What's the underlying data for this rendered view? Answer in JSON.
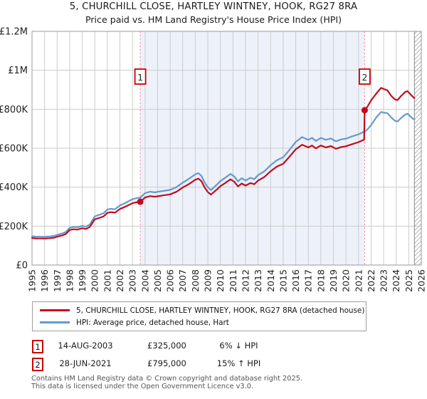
{
  "title": "5, CHURCHILL CLOSE, HARTLEY WINTNEY, HOOK, RG27 8RA",
  "subtitle": "Price paid vs. HM Land Registry's House Price Index (HPI)",
  "colors": {
    "property_line": "#c00c1e",
    "hpi_line": "#6699cc",
    "sale_dash_line": "#ff8888",
    "sale_dot": "#c00c1e",
    "marker_box_border": "#cc0000",
    "shade_fill": "#edf1fa",
    "grid": "#cccccc",
    "plot_border": "#999999",
    "hatch_stroke": "#aaaaaa"
  },
  "chart_data": {
    "type": "line",
    "title": "5, CHURCHILL CLOSE, HARTLEY WINTNEY, HOOK, RG27 8RA",
    "subtitle": "Price paid vs. HM Land Registry's House Price Index (HPI)",
    "grid": true,
    "legend_position": "bottom",
    "x_axis": {
      "min": 1995,
      "max": 2026,
      "tick_step": 1
    },
    "y_axis": {
      "min": 0,
      "max": 1200000,
      "ticks": [
        {
          "v": 0,
          "label": "£0"
        },
        {
          "v": 200000,
          "label": "£200K"
        },
        {
          "v": 400000,
          "label": "£400K"
        },
        {
          "v": 600000,
          "label": "£600K"
        },
        {
          "v": 800000,
          "label": "£800K"
        },
        {
          "v": 1000000,
          "label": "£1M"
        },
        {
          "v": 1200000,
          "label": "£1.2M"
        }
      ]
    },
    "shaded_region": {
      "from": 2003.62,
      "to": 2021.49
    },
    "hatched_region": {
      "from": 2025.45,
      "to": 2026
    },
    "sales": [
      {
        "n": "1",
        "x": 2003.62,
        "price": 325000,
        "date": "14-AUG-2003",
        "vs_hpi": "6% ↓ HPI"
      },
      {
        "n": "2",
        "x": 2021.49,
        "price": 795000,
        "date": "28-JUN-2021",
        "vs_hpi": "15% ↑ HPI"
      }
    ],
    "series": [
      {
        "name": "5, CHURCHILL CLOSE, HARTLEY WINTNEY, HOOK, RG27 8RA (detached house)",
        "color_key": "property_line",
        "points": [
          [
            1995.0,
            139000
          ],
          [
            1995.3,
            137000
          ],
          [
            1995.6,
            136500
          ],
          [
            1996.0,
            136000
          ],
          [
            1996.4,
            138000
          ],
          [
            1996.8,
            141000
          ],
          [
            1997.0,
            146000
          ],
          [
            1997.4,
            152000
          ],
          [
            1997.7,
            160000
          ],
          [
            1998.0,
            180000
          ],
          [
            1998.3,
            184000
          ],
          [
            1998.6,
            182000
          ],
          [
            1999.0,
            189000
          ],
          [
            1999.3,
            185000
          ],
          [
            1999.6,
            196000
          ],
          [
            2000.0,
            235000
          ],
          [
            2000.4,
            243000
          ],
          [
            2000.7,
            250000
          ],
          [
            2001.0,
            268000
          ],
          [
            2001.3,
            272000
          ],
          [
            2001.6,
            269000
          ],
          [
            2002.0,
            288000
          ],
          [
            2002.4,
            299000
          ],
          [
            2002.7,
            308000
          ],
          [
            2003.0,
            318000
          ],
          [
            2003.3,
            322000
          ],
          [
            2003.62,
            325000
          ],
          [
            2004.0,
            347000
          ],
          [
            2004.4,
            354000
          ],
          [
            2004.8,
            351000
          ],
          [
            2005.0,
            353000
          ],
          [
            2005.5,
            358000
          ],
          [
            2006.0,
            363000
          ],
          [
            2006.5,
            376000
          ],
          [
            2007.0,
            398000
          ],
          [
            2007.5,
            416000
          ],
          [
            2008.0,
            438000
          ],
          [
            2008.25,
            444000
          ],
          [
            2008.5,
            430000
          ],
          [
            2008.75,
            398000
          ],
          [
            2009.0,
            375000
          ],
          [
            2009.25,
            362000
          ],
          [
            2009.5,
            376000
          ],
          [
            2009.75,
            390000
          ],
          [
            2010.0,
            405000
          ],
          [
            2010.4,
            422000
          ],
          [
            2010.8,
            440000
          ],
          [
            2011.1,
            428000
          ],
          [
            2011.4,
            404000
          ],
          [
            2011.7,
            419000
          ],
          [
            2012.0,
            408000
          ],
          [
            2012.4,
            421000
          ],
          [
            2012.7,
            415000
          ],
          [
            2013.0,
            434000
          ],
          [
            2013.5,
            452000
          ],
          [
            2014.0,
            482000
          ],
          [
            2014.5,
            506000
          ],
          [
            2015.0,
            520000
          ],
          [
            2015.5,
            556000
          ],
          [
            2016.0,
            594000
          ],
          [
            2016.5,
            618000
          ],
          [
            2017.0,
            604000
          ],
          [
            2017.3,
            614000
          ],
          [
            2017.6,
            599000
          ],
          [
            2018.0,
            614000
          ],
          [
            2018.4,
            604000
          ],
          [
            2018.8,
            611000
          ],
          [
            2019.2,
            597000
          ],
          [
            2019.6,
            606000
          ],
          [
            2020.0,
            610000
          ],
          [
            2020.5,
            621000
          ],
          [
            2021.0,
            631000
          ],
          [
            2021.3,
            640000
          ],
          [
            2021.45,
            644000
          ],
          [
            2021.49,
            795000
          ],
          [
            2021.7,
            812000
          ],
          [
            2022.0,
            845000
          ],
          [
            2022.4,
            880000
          ],
          [
            2022.8,
            910000
          ],
          [
            2023.0,
            904000
          ],
          [
            2023.3,
            897000
          ],
          [
            2023.6,
            869000
          ],
          [
            2023.9,
            851000
          ],
          [
            2024.1,
            847000
          ],
          [
            2024.4,
            869000
          ],
          [
            2024.7,
            888000
          ],
          [
            2024.9,
            893000
          ],
          [
            2025.1,
            879000
          ],
          [
            2025.3,
            866000
          ],
          [
            2025.45,
            857000
          ]
        ]
      },
      {
        "name": "HPI: Average price, detached house, Hart",
        "color_key": "hpi_line",
        "points": [
          [
            1995.0,
            148000
          ],
          [
            1995.3,
            146000
          ],
          [
            1995.6,
            145500
          ],
          [
            1996.0,
            145000
          ],
          [
            1996.4,
            147000
          ],
          [
            1996.8,
            150000
          ],
          [
            1997.0,
            155000
          ],
          [
            1997.4,
            162000
          ],
          [
            1997.7,
            170000
          ],
          [
            1998.0,
            191000
          ],
          [
            1998.3,
            196000
          ],
          [
            1998.6,
            194000
          ],
          [
            1999.0,
            201000
          ],
          [
            1999.3,
            197000
          ],
          [
            1999.6,
            209000
          ],
          [
            2000.0,
            250000
          ],
          [
            2000.4,
            259000
          ],
          [
            2000.7,
            266000
          ],
          [
            2001.0,
            285000
          ],
          [
            2001.3,
            289000
          ],
          [
            2001.6,
            286000
          ],
          [
            2002.0,
            306000
          ],
          [
            2002.4,
            318000
          ],
          [
            2002.7,
            328000
          ],
          [
            2003.0,
            338000
          ],
          [
            2003.3,
            343000
          ],
          [
            2003.62,
            346000
          ],
          [
            2004.0,
            369000
          ],
          [
            2004.4,
            377000
          ],
          [
            2004.8,
            373000
          ],
          [
            2005.0,
            376000
          ],
          [
            2005.5,
            381000
          ],
          [
            2006.0,
            386000
          ],
          [
            2006.5,
            400000
          ],
          [
            2007.0,
            423000
          ],
          [
            2007.5,
            443000
          ],
          [
            2008.0,
            466000
          ],
          [
            2008.25,
            472000
          ],
          [
            2008.5,
            457000
          ],
          [
            2008.75,
            423000
          ],
          [
            2009.0,
            399000
          ],
          [
            2009.25,
            385000
          ],
          [
            2009.5,
            400000
          ],
          [
            2009.75,
            415000
          ],
          [
            2010.0,
            431000
          ],
          [
            2010.4,
            449000
          ],
          [
            2010.8,
            468000
          ],
          [
            2011.1,
            455000
          ],
          [
            2011.4,
            430000
          ],
          [
            2011.7,
            446000
          ],
          [
            2012.0,
            434000
          ],
          [
            2012.4,
            448000
          ],
          [
            2012.7,
            441000
          ],
          [
            2013.0,
            462000
          ],
          [
            2013.5,
            481000
          ],
          [
            2014.0,
            513000
          ],
          [
            2014.5,
            538000
          ],
          [
            2015.0,
            553000
          ],
          [
            2015.5,
            591000
          ],
          [
            2016.0,
            632000
          ],
          [
            2016.5,
            657000
          ],
          [
            2017.0,
            643000
          ],
          [
            2017.3,
            653000
          ],
          [
            2017.6,
            637000
          ],
          [
            2018.0,
            653000
          ],
          [
            2018.4,
            643000
          ],
          [
            2018.8,
            650000
          ],
          [
            2019.2,
            635000
          ],
          [
            2019.6,
            645000
          ],
          [
            2020.0,
            649000
          ],
          [
            2020.5,
            661000
          ],
          [
            2021.0,
            671000
          ],
          [
            2021.3,
            681000
          ],
          [
            2021.49,
            685000
          ],
          [
            2021.7,
            696000
          ],
          [
            2022.0,
            718000
          ],
          [
            2022.4,
            757000
          ],
          [
            2022.8,
            786000
          ],
          [
            2023.0,
            783000
          ],
          [
            2023.3,
            780000
          ],
          [
            2023.6,
            758000
          ],
          [
            2023.9,
            741000
          ],
          [
            2024.1,
            737000
          ],
          [
            2024.4,
            756000
          ],
          [
            2024.7,
            772000
          ],
          [
            2024.9,
            777000
          ],
          [
            2025.1,
            765000
          ],
          [
            2025.3,
            753000
          ],
          [
            2025.45,
            748000
          ]
        ]
      }
    ]
  },
  "legend": {
    "series": [
      {
        "label": "5, CHURCHILL CLOSE, HARTLEY WINTNEY, HOOK, RG27 8RA (detached house)"
      },
      {
        "label": "HPI: Average price, detached house, Hart"
      }
    ]
  },
  "annotations": [
    {
      "marker": "1",
      "date": "14-AUG-2003",
      "price": "£325,000",
      "hpi": "6% ↓ HPI"
    },
    {
      "marker": "2",
      "date": "28-JUN-2021",
      "price": "£795,000",
      "hpi": "15% ↑ HPI"
    }
  ],
  "footer": {
    "line1": "Contains HM Land Registry data © Crown copyright and database right 2025.",
    "line2": "This data is licensed under the Open Government Licence v3.0."
  }
}
